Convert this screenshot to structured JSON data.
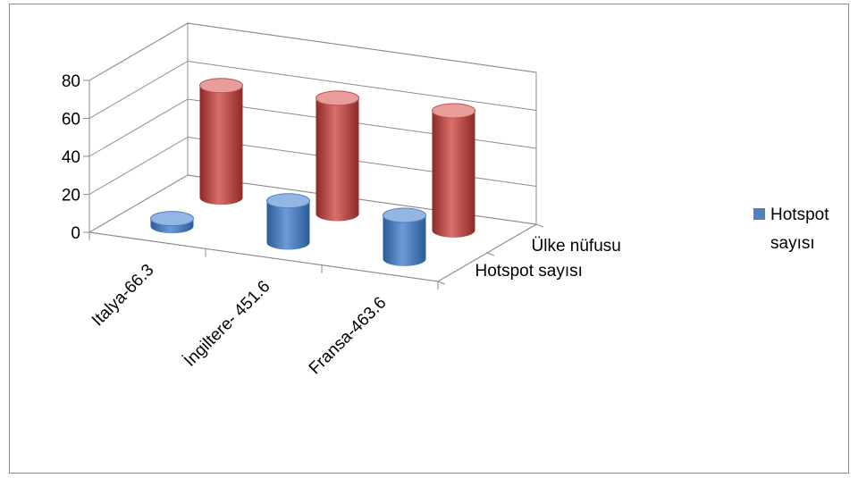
{
  "chart_data": {
    "type": "bar",
    "subtype": "3d-cylinder",
    "title": "",
    "categories": [
      "Italya-66.3",
      "İngiltere- 451.6",
      "Fransa-463.6"
    ],
    "series": [
      {
        "name": "Hotspot sayısı",
        "color": "#4f81bd",
        "values": [
          4,
          22,
          23
        ]
      },
      {
        "name": "Ülke nüfusu",
        "color": "#c0504d",
        "values": [
          59,
          61,
          63
        ]
      }
    ],
    "y_ticks": [
      "0",
      "20",
      "40",
      "60",
      "80"
    ],
    "ylim": [
      0,
      80
    ],
    "grid": true,
    "legend": {
      "position": "right",
      "entries": [
        {
          "line1": "Hotspot",
          "line2": "sayısı",
          "color": "#4f81bd"
        }
      ]
    }
  }
}
